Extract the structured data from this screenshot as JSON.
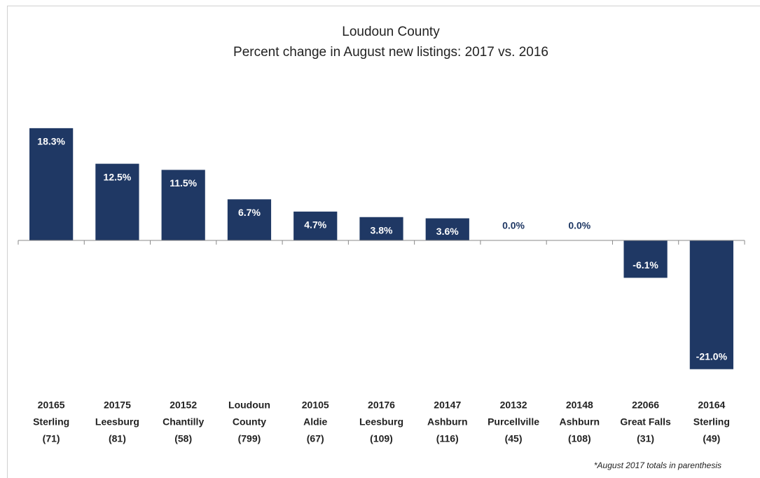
{
  "chart_data": {
    "type": "bar",
    "title": "Loudoun County",
    "subtitle": "Percent change in August new listings: 2017 vs. 2016",
    "footnote": "*August 2017 totals in parenthesis",
    "categories": [
      [
        "20165",
        "Sterling",
        "(71)"
      ],
      [
        "20175",
        "Leesburg",
        "(81)"
      ],
      [
        "20152",
        "Chantilly",
        "(58)"
      ],
      [
        "Loudoun",
        "County",
        "(799)"
      ],
      [
        "20105",
        "Aldie",
        "(67)"
      ],
      [
        "20176",
        "Leesburg",
        "(109)"
      ],
      [
        "20147",
        "Ashburn",
        "(116)"
      ],
      [
        "20132",
        "Purcellville",
        "(45)"
      ],
      [
        "20148",
        "Ashburn",
        "(108)"
      ],
      [
        "22066",
        "Great Falls",
        "(31)"
      ],
      [
        "20164",
        "Sterling",
        "(49)"
      ]
    ],
    "values": [
      18.3,
      12.5,
      11.5,
      6.7,
      4.7,
      3.8,
      3.6,
      0.0,
      0.0,
      -6.1,
      -21.0
    ],
    "value_labels": [
      "18.3%",
      "12.5%",
      "11.5%",
      "6.7%",
      "4.7%",
      "3.8%",
      "3.6%",
      "0.0%",
      "0.0%",
      "-6.1%",
      "-21.0%"
    ],
    "color": "#1f3864",
    "ylim": [
      -22,
      20
    ]
  }
}
